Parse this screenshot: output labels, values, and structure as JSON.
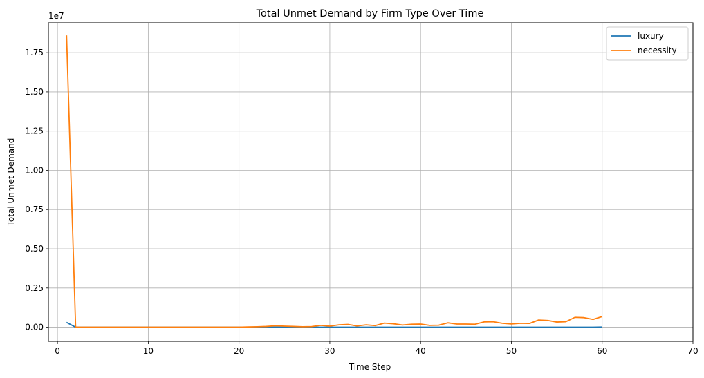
{
  "chart_data": {
    "type": "line",
    "title": "Total Unmet Demand by Firm Type Over Time",
    "xlabel": "Time Step",
    "ylabel": "Total Unmet Demand",
    "y_offset_text": "1e7",
    "y_multiplier": 10000000,
    "xlim": [
      -1,
      70
    ],
    "ylim": [
      -0.09,
      1.94
    ],
    "x_ticks": [
      0,
      10,
      20,
      30,
      40,
      50,
      60,
      70
    ],
    "x_tick_labels": [
      "0",
      "10",
      "20",
      "30",
      "40",
      "50",
      "60",
      "70"
    ],
    "y_ticks": [
      0.0,
      0.25,
      0.5,
      0.75,
      1.0,
      1.25,
      1.5,
      1.75
    ],
    "y_tick_labels": [
      "0.00",
      "0.25",
      "0.50",
      "0.75",
      "1.00",
      "1.25",
      "1.50",
      "1.75"
    ],
    "grid": true,
    "legend_position": "top-right",
    "x": [
      1,
      2,
      3,
      4,
      5,
      6,
      7,
      8,
      9,
      10,
      11,
      12,
      13,
      14,
      15,
      16,
      17,
      18,
      19,
      20,
      21,
      22,
      23,
      24,
      25,
      26,
      27,
      28,
      29,
      30,
      31,
      32,
      33,
      34,
      35,
      36,
      37,
      38,
      39,
      40,
      41,
      42,
      43,
      44,
      45,
      46,
      47,
      48,
      49,
      50,
      51,
      52,
      53,
      54,
      55,
      56,
      57,
      58,
      59,
      60
    ],
    "series": [
      {
        "name": "luxury",
        "color": "#1f77b4",
        "values": [
          0.031,
          0.0,
          0.0,
          0.0,
          0.0,
          0.0,
          0.0,
          0.0,
          0.0,
          0.0,
          0.0,
          0.0,
          0.0,
          0.0,
          0.0,
          0.0,
          0.0,
          0.0,
          0.0,
          0.0,
          0.0,
          0.0,
          0.0,
          0.0,
          0.0,
          0.0,
          0.0,
          0.0,
          0.0,
          0.0,
          0.0,
          0.0,
          0.0,
          0.0,
          0.0,
          0.0,
          0.0,
          0.0,
          0.0,
          0.0,
          0.0,
          0.0,
          0.0,
          0.0,
          0.0,
          0.0,
          0.0,
          0.0,
          0.0,
          0.0,
          0.0,
          0.0,
          0.0,
          0.0,
          0.0,
          0.0,
          0.0,
          0.0,
          0.0,
          0.001
        ]
      },
      {
        "name": "necessity",
        "color": "#ff7f0e",
        "values": [
          1.86,
          0.0,
          0.0,
          0.0,
          0.0,
          0.0,
          0.0,
          0.0,
          0.0,
          0.0,
          0.0,
          0.0,
          0.0,
          0.0,
          0.0,
          0.0,
          0.0,
          0.0,
          0.0,
          0.0,
          0.002,
          0.003,
          0.005,
          0.009,
          0.007,
          0.005,
          0.003,
          0.004,
          0.012,
          0.007,
          0.015,
          0.018,
          0.008,
          0.015,
          0.01,
          0.026,
          0.022,
          0.014,
          0.019,
          0.02,
          0.012,
          0.013,
          0.028,
          0.02,
          0.02,
          0.019,
          0.034,
          0.035,
          0.025,
          0.021,
          0.025,
          0.024,
          0.046,
          0.043,
          0.033,
          0.035,
          0.063,
          0.061,
          0.05,
          0.068
        ]
      }
    ]
  }
}
